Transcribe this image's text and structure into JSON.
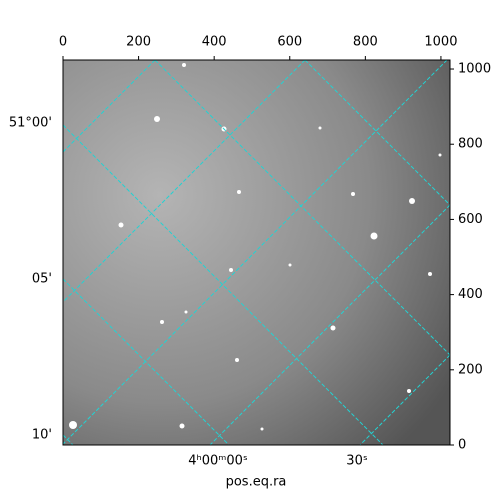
{
  "chart_data": {
    "type": "image",
    "xlabel": "pos.eq.ra",
    "xlim": [
      0,
      1024
    ],
    "xticks": [
      0,
      200,
      400,
      600,
      800,
      1000
    ],
    "ylim": [
      0,
      1024
    ],
    "yticks": [
      0,
      200,
      400,
      600,
      800,
      1000
    ],
    "ra_tick_labels": [
      "4ʰ00ᵐ00ˢ",
      "30ˢ"
    ],
    "dec_tick_labels": [
      "51°00'",
      "05'",
      "10'"
    ],
    "grid_color": "#22d3d3"
  }
}
